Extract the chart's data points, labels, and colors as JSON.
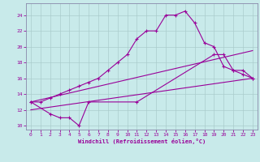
{
  "xlabel": "Windchill (Refroidissement éolien,°C)",
  "bg_color": "#c8eaea",
  "line_color": "#990099",
  "grid_color": "#aacccc",
  "spine_color": "#8888aa",
  "xlim": [
    -0.5,
    23.5
  ],
  "ylim": [
    9.5,
    25.5
  ],
  "yticks": [
    10,
    12,
    14,
    16,
    18,
    20,
    22,
    24
  ],
  "xticks": [
    0,
    1,
    2,
    3,
    4,
    5,
    6,
    7,
    8,
    9,
    10,
    11,
    12,
    13,
    14,
    15,
    16,
    17,
    18,
    19,
    20,
    21,
    22,
    23
  ],
  "line1_x": [
    0,
    1,
    2,
    3,
    4,
    5,
    6,
    7,
    8,
    9,
    10,
    11,
    12,
    13,
    14,
    15,
    16,
    17,
    18,
    19,
    20,
    21,
    22,
    23
  ],
  "line1_y": [
    13,
    13,
    13.5,
    14,
    14.5,
    15,
    15.5,
    16,
    17,
    18,
    19,
    21,
    22,
    22,
    24,
    24,
    24.5,
    23,
    20.5,
    20,
    17.5,
    17,
    16.5,
    16
  ],
  "line2_x": [
    0,
    2,
    3,
    4,
    5,
    6,
    11,
    19,
    20,
    21,
    22,
    23
  ],
  "line2_y": [
    13,
    11.5,
    11,
    11,
    10,
    13,
    13,
    19,
    19,
    17,
    17,
    16
  ],
  "line3_x": [
    0,
    23
  ],
  "line3_y": [
    12,
    16
  ],
  "line4_x": [
    0,
    23
  ],
  "line4_y": [
    13,
    19.5
  ]
}
